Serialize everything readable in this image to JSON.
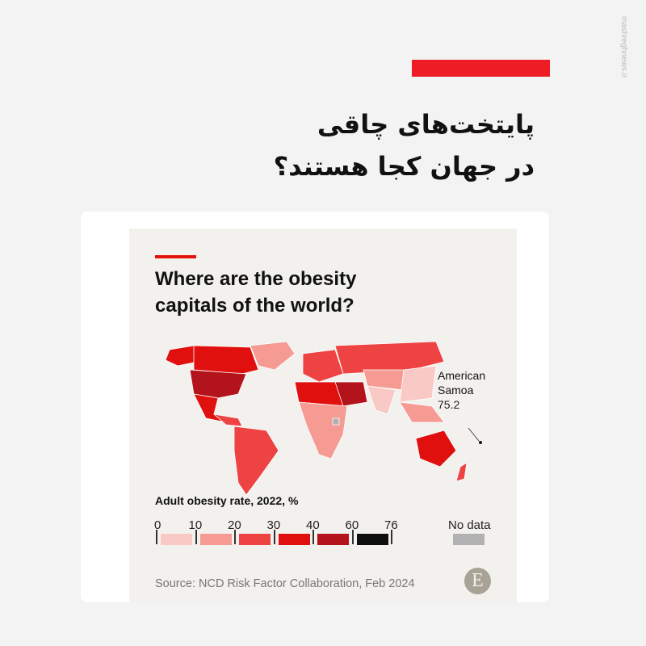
{
  "watermark": "mashreghnews.ir",
  "headline": {
    "line1": "پایتخت‌های چاقی",
    "line2": "در جهان کجا هستند؟"
  },
  "chart_data": {
    "type": "choropleth map",
    "title_line1": "Where are the obesity",
    "title_line2": "capitals of the world?",
    "annotation": {
      "label_line1": "American",
      "label_line2": "Samoa",
      "value": "75.2"
    },
    "legend": {
      "title": "Adult obesity rate, 2022, %",
      "ticks": [
        "0",
        "10",
        "20",
        "30",
        "40",
        "60",
        "76"
      ],
      "bins": [
        {
          "range": [
            0,
            10
          ],
          "color": "#f9c9c6"
        },
        {
          "range": [
            10,
            20
          ],
          "color": "#f59b93"
        },
        {
          "range": [
            20,
            30
          ],
          "color": "#ee4343"
        },
        {
          "range": [
            30,
            40
          ],
          "color": "#e0100f"
        },
        {
          "range": [
            40,
            60
          ],
          "color": "#b3131a"
        },
        {
          "range": [
            60,
            76
          ],
          "color": "#0f0f0f"
        }
      ],
      "no_data": {
        "label": "No data",
        "color": "#b1b1b1"
      }
    },
    "source": "Source: NCD Risk Factor Collaboration, Feb 2024",
    "logo": "E"
  }
}
